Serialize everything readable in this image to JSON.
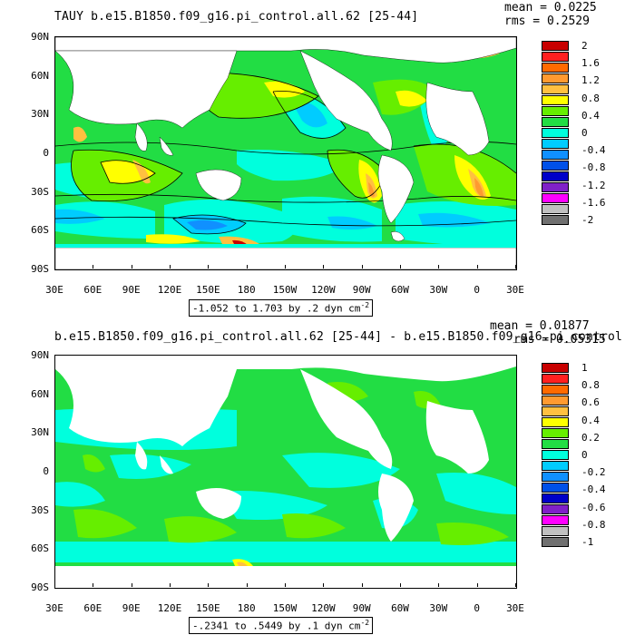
{
  "panels": [
    {
      "id": "top",
      "title": "TAUY b.e15.B1850.f09_g16.pi_control.all.62 [25-44]",
      "mean": "mean = 0.0225",
      "rms": "rms = 0.2529",
      "range_text": "-1.052 to 1.703 by .2 dyn cm",
      "range_sup": "-2",
      "lat_labels": [
        "90N",
        "60N",
        "30N",
        "0",
        "30S",
        "60S",
        "90S"
      ],
      "lon_labels": [
        "30E",
        "60E",
        "90E",
        "120E",
        "150E",
        "180",
        "150W",
        "120W",
        "90W",
        "60W",
        "30W",
        "0",
        "30E"
      ],
      "colorbar": {
        "labels": [
          "2",
          "1.6",
          "1.2",
          "0.8",
          "0.4",
          "0",
          "-0.4",
          "-0.8",
          "-1.2",
          "-1.6",
          "-2"
        ],
        "colors": [
          "#c80000",
          "#ff2020",
          "#ff6a00",
          "#ff9a30",
          "#ffc040",
          "#ffff00",
          "#66ee00",
          "#22dd44",
          "#00ffdd",
          "#00ccff",
          "#1090ff",
          "#0050e8",
          "#0000c8",
          "#8020c8",
          "#ff00ff",
          "#c0c0c0",
          "#707070"
        ]
      }
    },
    {
      "id": "bottom",
      "title": "b.e15.B1850.f09_g16.pi_control.all.62 [25-44] - b.e15.B1850.f09_g16.pi_control",
      "mean": "mean = 0.01877",
      "rms": "rms = 0.05315",
      "range_text": "-.2341 to .5449 by .1 dyn cm",
      "range_sup": "-2",
      "lat_labels": [
        "90N",
        "60N",
        "30N",
        "0",
        "30S",
        "60S",
        "90S"
      ],
      "lon_labels": [
        "30E",
        "60E",
        "90E",
        "120E",
        "150E",
        "180",
        "150W",
        "120W",
        "90W",
        "60W",
        "30W",
        "0",
        "30E"
      ],
      "colorbar": {
        "labels": [
          "1",
          "0.8",
          "0.6",
          "0.4",
          "0.2",
          "0",
          "-0.2",
          "-0.4",
          "-0.6",
          "-0.8",
          "-1"
        ],
        "colors": [
          "#c80000",
          "#ff2020",
          "#ff6a00",
          "#ff9a30",
          "#ffc040",
          "#ffff00",
          "#66ee00",
          "#22dd44",
          "#00ffdd",
          "#00ccff",
          "#1090ff",
          "#0050e8",
          "#0000c8",
          "#8020c8",
          "#ff00ff",
          "#c0c0c0",
          "#707070"
        ]
      }
    }
  ],
  "colors": {
    "ocean_base": "#22dd44",
    "land": "#ffffff",
    "light_green": "#66ee00",
    "cyan": "#00ffdd",
    "sky": "#00ccff",
    "blue": "#1090ff",
    "yellow": "#ffff00",
    "orange": "#ff9a30",
    "red": "#c80000"
  }
}
